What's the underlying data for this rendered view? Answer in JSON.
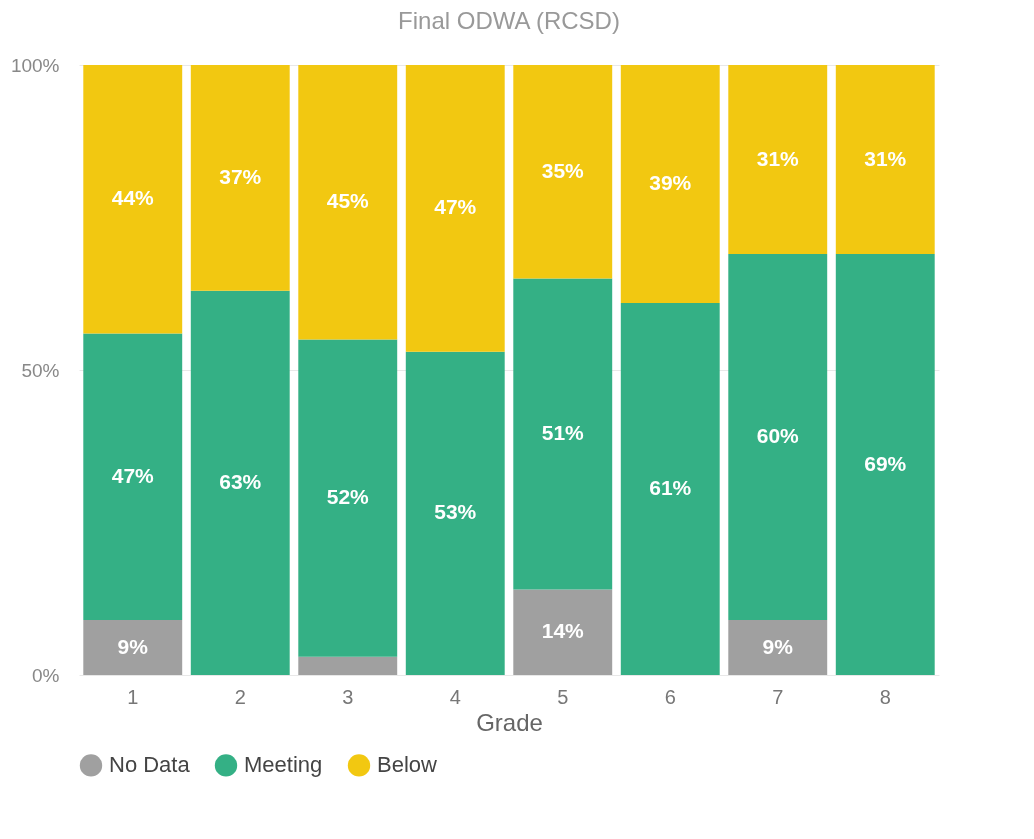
{
  "chart_data": {
    "type": "bar",
    "title": "Final ODWA (RCSD)",
    "xlabel": "Grade",
    "categories": [
      "1",
      "2",
      "3",
      "4",
      "5",
      "6",
      "7",
      "8"
    ],
    "stacked": true,
    "ylim": [
      0,
      100
    ],
    "yticks": [
      {
        "value": 0,
        "label": "0%"
      },
      {
        "value": 50,
        "label": "50%"
      },
      {
        "value": 100,
        "label": "100%"
      }
    ],
    "grid": "y",
    "legend": "bottom",
    "series": [
      {
        "name": "No Data",
        "color": "#a0a0a0",
        "values": [
          9,
          null,
          3,
          null,
          14,
          null,
          9,
          null
        ],
        "value_labels": [
          "9%",
          null,
          null,
          null,
          "14%",
          null,
          "9%",
          null
        ]
      },
      {
        "name": "Meeting",
        "color": "#34b085",
        "values": [
          47,
          63,
          52,
          53,
          51,
          61,
          60,
          69
        ],
        "value_labels": [
          "47%",
          "63%",
          "52%",
          "53%",
          "51%",
          "61%",
          "60%",
          "69%"
        ]
      },
      {
        "name": "Below",
        "color": "#f2c811",
        "values": [
          44,
          37,
          45,
          47,
          35,
          39,
          31,
          31
        ],
        "value_labels": [
          "44%",
          "37%",
          "45%",
          "47%",
          "35%",
          "39%",
          "31%",
          "31%"
        ]
      }
    ]
  }
}
